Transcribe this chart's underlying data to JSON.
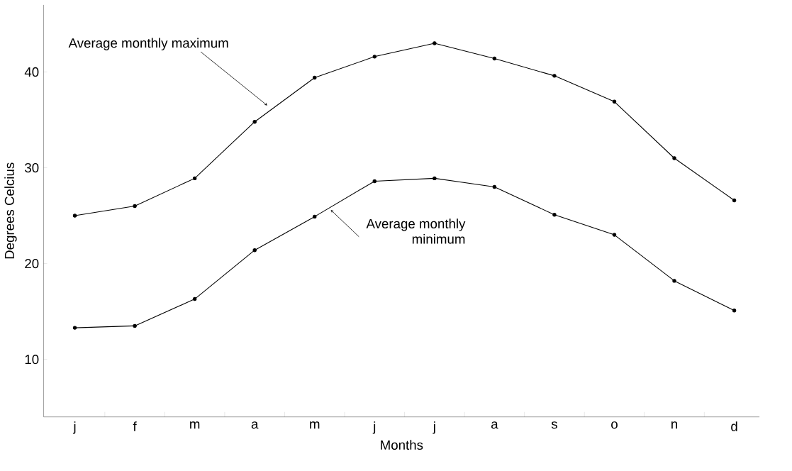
{
  "chart_data": {
    "type": "line",
    "xlabel": "Months",
    "ylabel": "Degrees Celcius",
    "categories": [
      "j",
      "f",
      "m",
      "a",
      "m",
      "j",
      "j",
      "a",
      "s",
      "o",
      "n",
      "d"
    ],
    "series": [
      {
        "color": "#000000",
        "values": [
          25.0,
          26.0,
          28.9,
          34.8,
          39.4,
          41.6,
          43.0,
          41.4,
          39.6,
          36.9,
          31.0,
          26.6
        ]
      },
      {
        "color": "#000000",
        "values": [
          13.3,
          13.5,
          16.3,
          21.4,
          24.9,
          28.6,
          28.9,
          28.0,
          25.1,
          23.0,
          18.2,
          15.1
        ]
      }
    ],
    "annotations": [
      "Average monthly maximum",
      "Average monthly minimum"
    ],
    "ylim": [
      4,
      47
    ],
    "yticks": [
      10,
      20,
      30,
      40
    ],
    "marker": "circle",
    "line_style": "solid"
  }
}
